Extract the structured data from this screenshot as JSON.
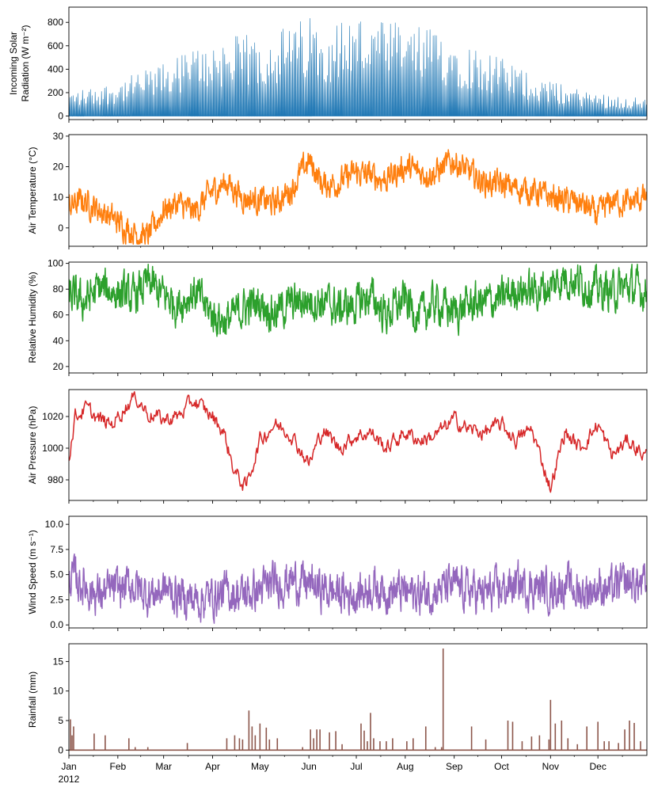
{
  "chart_data": {
    "type": "line",
    "shared_x": {
      "type": "time",
      "range": [
        "2012-01-01",
        "2012-12-31"
      ],
      "ticks": [
        {
          "date": "2012-01-01",
          "label": "Jan"
        },
        {
          "date": "2012-02-01",
          "label": "Feb"
        },
        {
          "date": "2012-03-01",
          "label": "Mar"
        },
        {
          "date": "2012-04-01",
          "label": "Apr"
        },
        {
          "date": "2012-05-01",
          "label": "May"
        },
        {
          "date": "2012-06-01",
          "label": "Jun"
        },
        {
          "date": "2012-07-01",
          "label": "Jul"
        },
        {
          "date": "2012-08-01",
          "label": "Aug"
        },
        {
          "date": "2012-09-01",
          "label": "Sep"
        },
        {
          "date": "2012-10-01",
          "label": "Oct"
        },
        {
          "date": "2012-11-01",
          "label": "Nov"
        },
        {
          "date": "2012-12-01",
          "label": "Dec"
        }
      ],
      "year_label": "2012"
    },
    "panels": [
      {
        "ylabel": [
          "Incoming Solar",
          "Radiation (W m⁻²)"
        ],
        "color": "#1f77b4",
        "style": "fill",
        "ylim": [
          -30,
          930
        ],
        "yticks": [
          0,
          200,
          400,
          600,
          800
        ],
        "ytick_labels": [
          "0",
          "200",
          "400",
          "600",
          "800"
        ],
        "series": {
          "x": [
            "2012-01-01",
            "2012-01-15",
            "2012-02-01",
            "2012-02-15",
            "2012-03-01",
            "2012-03-15",
            "2012-04-01",
            "2012-04-15",
            "2012-05-01",
            "2012-05-15",
            "2012-06-01",
            "2012-06-15",
            "2012-07-01",
            "2012-07-15",
            "2012-08-01",
            "2012-08-15",
            "2012-09-01",
            "2012-09-15",
            "2012-10-01",
            "2012-10-15",
            "2012-11-01",
            "2012-11-15",
            "2012-12-01",
            "2012-12-15",
            "2012-12-31"
          ],
          "y": [
            210,
            250,
            300,
            380,
            450,
            560,
            650,
            690,
            700,
            760,
            860,
            820,
            880,
            820,
            800,
            760,
            700,
            600,
            500,
            400,
            300,
            250,
            200,
            180,
            150
          ]
        }
      },
      {
        "ylabel": [
          "Air Temperature (°C)"
        ],
        "color": "#ff7f0e",
        "style": "line",
        "ylim": [
          -6,
          30.5
        ],
        "yticks": [
          0,
          10,
          20,
          30
        ],
        "ytick_labels": [
          "0",
          "10",
          "20",
          "30"
        ],
        "series": {
          "x": [
            "2012-01-01",
            "2012-01-10",
            "2012-01-20",
            "2012-02-01",
            "2012-02-10",
            "2012-02-20",
            "2012-03-01",
            "2012-03-10",
            "2012-03-20",
            "2012-04-01",
            "2012-04-10",
            "2012-04-20",
            "2012-05-01",
            "2012-05-10",
            "2012-05-20",
            "2012-06-01",
            "2012-06-10",
            "2012-06-20",
            "2012-07-01",
            "2012-07-10",
            "2012-07-20",
            "2012-08-01",
            "2012-08-10",
            "2012-08-20",
            "2012-09-01",
            "2012-09-10",
            "2012-09-20",
            "2012-10-01",
            "2012-10-10",
            "2012-10-20",
            "2012-11-01",
            "2012-11-10",
            "2012-11-20",
            "2012-12-01",
            "2012-12-10",
            "2012-12-20",
            "2012-12-31"
          ],
          "y": [
            7,
            9,
            6,
            2,
            -1,
            -3,
            6,
            8,
            5,
            12,
            15,
            10,
            9,
            8,
            12,
            22,
            14,
            15,
            18,
            17,
            16,
            20,
            18,
            18,
            22,
            18,
            15,
            14,
            13,
            12,
            10,
            9,
            8,
            4,
            9,
            8,
            10
          ]
        }
      },
      {
        "ylabel": [
          "Relative Humidity (%)"
        ],
        "color": "#2ca02c",
        "style": "line",
        "ylim": [
          15,
          101
        ],
        "yticks": [
          20,
          40,
          60,
          80,
          100
        ],
        "ytick_labels": [
          "20",
          "40",
          "60",
          "80",
          "100"
        ],
        "series": {
          "x": [
            "2012-01-01",
            "2012-01-10",
            "2012-01-20",
            "2012-02-01",
            "2012-02-10",
            "2012-02-20",
            "2012-03-01",
            "2012-03-10",
            "2012-03-20",
            "2012-04-01",
            "2012-04-10",
            "2012-04-20",
            "2012-05-01",
            "2012-05-10",
            "2012-05-20",
            "2012-06-01",
            "2012-06-10",
            "2012-06-20",
            "2012-07-01",
            "2012-07-10",
            "2012-07-20",
            "2012-08-01",
            "2012-08-10",
            "2012-08-20",
            "2012-09-01",
            "2012-09-10",
            "2012-09-20",
            "2012-10-01",
            "2012-10-10",
            "2012-10-20",
            "2012-11-01",
            "2012-11-10",
            "2012-11-20",
            "2012-12-01",
            "2012-12-10",
            "2012-12-20",
            "2012-12-31"
          ],
          "y": [
            75,
            70,
            80,
            78,
            72,
            85,
            75,
            68,
            78,
            60,
            55,
            65,
            70,
            62,
            68,
            72,
            70,
            65,
            68,
            75,
            60,
            72,
            58,
            70,
            62,
            68,
            70,
            72,
            80,
            78,
            82,
            90,
            85,
            80,
            78,
            82,
            78
          ]
        }
      },
      {
        "ylabel": [
          "Air Pressure (hPa)"
        ],
        "color": "#d62728",
        "style": "line",
        "ylim": [
          967,
          1037
        ],
        "yticks": [
          980,
          1000,
          1020
        ],
        "ytick_labels": [
          "980",
          "1000",
          "1020"
        ],
        "series": {
          "x": [
            "2012-01-01",
            "2012-01-05",
            "2012-01-12",
            "2012-01-20",
            "2012-01-28",
            "2012-02-05",
            "2012-02-12",
            "2012-02-20",
            "2012-03-01",
            "2012-03-10",
            "2012-03-20",
            "2012-04-01",
            "2012-04-08",
            "2012-04-15",
            "2012-04-22",
            "2012-05-01",
            "2012-05-10",
            "2012-05-20",
            "2012-06-01",
            "2012-06-10",
            "2012-06-20",
            "2012-07-01",
            "2012-07-10",
            "2012-07-20",
            "2012-08-01",
            "2012-08-10",
            "2012-08-20",
            "2012-09-01",
            "2012-09-10",
            "2012-09-20",
            "2012-10-01",
            "2012-10-10",
            "2012-10-20",
            "2012-11-01",
            "2012-11-10",
            "2012-11-20",
            "2012-12-01",
            "2012-12-10",
            "2012-12-20",
            "2012-12-31"
          ],
          "y": [
            995,
            1020,
            1025,
            1018,
            1015,
            1025,
            1033,
            1022,
            1018,
            1020,
            1030,
            1020,
            1010,
            985,
            975,
            1005,
            1015,
            1010,
            990,
            1012,
            1000,
            1008,
            1010,
            1000,
            1010,
            1005,
            1008,
            1018,
            1012,
            1010,
            1015,
            1005,
            1012,
            975,
            1010,
            1000,
            1015,
            995,
            1005,
            995
          ]
        }
      },
      {
        "ylabel": [
          "Wind Speed (m s⁻¹)"
        ],
        "color": "#9467bd",
        "style": "line",
        "ylim": [
          -0.3,
          10.8
        ],
        "yticks": [
          0,
          2.5,
          5,
          7.5,
          10
        ],
        "ytick_labels": [
          "0.0",
          "2.5",
          "5.0",
          "7.5",
          "10.0"
        ],
        "series": {
          "x": [
            "2012-01-01",
            "2012-01-10",
            "2012-01-20",
            "2012-02-01",
            "2012-02-10",
            "2012-02-20",
            "2012-03-01",
            "2012-03-10",
            "2012-03-20",
            "2012-04-01",
            "2012-04-10",
            "2012-04-20",
            "2012-05-01",
            "2012-05-10",
            "2012-05-20",
            "2012-06-01",
            "2012-06-10",
            "2012-06-20",
            "2012-07-01",
            "2012-07-10",
            "2012-07-20",
            "2012-08-01",
            "2012-08-10",
            "2012-08-20",
            "2012-09-01",
            "2012-09-10",
            "2012-09-20",
            "2012-10-01",
            "2012-10-10",
            "2012-10-20",
            "2012-11-01",
            "2012-11-10",
            "2012-11-20",
            "2012-12-01",
            "2012-12-10",
            "2012-12-20",
            "2012-12-31"
          ],
          "y": [
            5,
            4,
            3,
            3.5,
            4,
            3,
            3.5,
            3,
            2.5,
            2.8,
            3.2,
            3,
            3.5,
            4,
            4.5,
            4,
            3.5,
            3.2,
            3,
            3.8,
            3.5,
            3.2,
            3,
            3.5,
            3.8,
            3.5,
            3,
            3.5,
            4,
            3.8,
            3.5,
            4,
            3.2,
            3.8,
            3.5,
            4.2,
            4
          ]
        }
      },
      {
        "ylabel": [
          "Rainfall (mm)"
        ],
        "color": "#8c564b",
        "style": "bar",
        "ylim": [
          -0.9,
          18
        ],
        "yticks": [
          0,
          5,
          10,
          15
        ],
        "ytick_labels": [
          "0",
          "5",
          "10",
          "15"
        ],
        "series": {
          "x": [
            "2012-01-02",
            "2012-01-03",
            "2012-01-04",
            "2012-01-17",
            "2012-01-24",
            "2012-02-08",
            "2012-02-12",
            "2012-02-20",
            "2012-03-16",
            "2012-04-10",
            "2012-04-15",
            "2012-04-18",
            "2012-04-20",
            "2012-04-24",
            "2012-04-26",
            "2012-04-28",
            "2012-05-01",
            "2012-05-05",
            "2012-05-07",
            "2012-05-12",
            "2012-05-28",
            "2012-06-02",
            "2012-06-04",
            "2012-06-06",
            "2012-06-08",
            "2012-06-14",
            "2012-06-18",
            "2012-06-22",
            "2012-07-04",
            "2012-07-06",
            "2012-07-08",
            "2012-07-10",
            "2012-07-12",
            "2012-07-16",
            "2012-07-20",
            "2012-07-24",
            "2012-08-02",
            "2012-08-06",
            "2012-08-14",
            "2012-08-20",
            "2012-08-24",
            "2012-08-25",
            "2012-09-12",
            "2012-09-21",
            "2012-10-05",
            "2012-10-08",
            "2012-10-14",
            "2012-10-20",
            "2012-10-25",
            "2012-10-31",
            "2012-11-01",
            "2012-11-04",
            "2012-11-08",
            "2012-11-12",
            "2012-11-18",
            "2012-11-24",
            "2012-12-01",
            "2012-12-05",
            "2012-12-08",
            "2012-12-14",
            "2012-12-18",
            "2012-12-21",
            "2012-12-24",
            "2012-12-28"
          ],
          "y": [
            5.2,
            2.5,
            4,
            2.8,
            2.5,
            2,
            0.5,
            0.5,
            1.2,
            2,
            2.5,
            2,
            1.8,
            6.7,
            4,
            2.5,
            4.5,
            3.8,
            1.8,
            2,
            0.5,
            3.5,
            2,
            3.5,
            3.5,
            3,
            3.2,
            1,
            4.5,
            3.3,
            1.5,
            6.3,
            2,
            1.5,
            1.5,
            2,
            1.5,
            2,
            4,
            0.5,
            0.5,
            17.2,
            4,
            1.8,
            5,
            4.8,
            1.5,
            2.3,
            2.5,
            1.8,
            8.5,
            4.5,
            5,
            2,
            1,
            4,
            4.8,
            1.5,
            1.5,
            1.2,
            3.5,
            5,
            4.6,
            1.5
          ]
        }
      }
    ]
  }
}
